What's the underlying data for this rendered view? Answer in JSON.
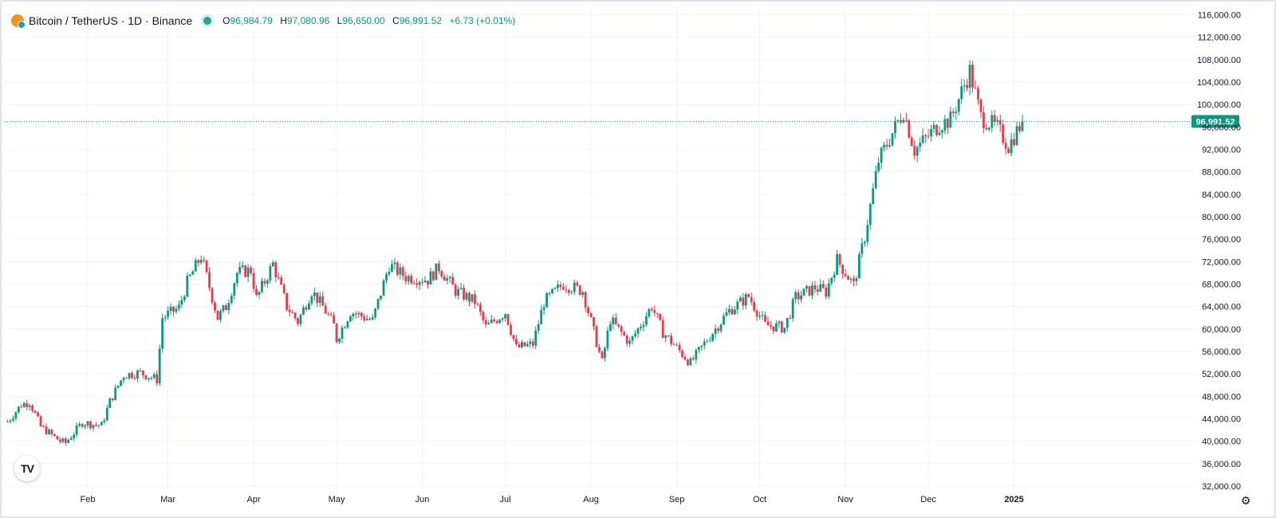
{
  "header": {
    "symbol_title": "Bitcoin / TetherUS · 1D · Binance",
    "ohlc": [
      {
        "k": "O",
        "v": "96,984.79"
      },
      {
        "k": "H",
        "v": "97,080.96"
      },
      {
        "k": "L",
        "v": "96,650.00"
      },
      {
        "k": "C",
        "v": "96,991.52"
      }
    ],
    "change": "+6.73 (+0.01%)"
  },
  "colors": {
    "up": "#089981",
    "down": "#f23645",
    "grid": "#f0f3fa",
    "axis_text": "#131722",
    "price_line": "#089981"
  },
  "logo_text": "TV",
  "settings_icon": "settings-icon",
  "chart_data": {
    "type": "candlestick",
    "xlabel": "",
    "ylabel": "",
    "ylim": [
      30000,
      117500
    ],
    "y_ticks": [
      "116,000.00",
      "112,000.00",
      "108,000.00",
      "104,000.00",
      "100,000.00",
      "96,000.00",
      "92,000.00",
      "88,000.00",
      "84,000.00",
      "80,000.00",
      "76,000.00",
      "72,000.00",
      "68,000.00",
      "64,000.00",
      "60,000.00",
      "56,000.00",
      "52,000.00",
      "48,000.00",
      "44,000.00",
      "40,000.00",
      "36,000.00",
      "32,000.00"
    ],
    "y_tick_values": [
      116000,
      112000,
      108000,
      104000,
      100000,
      96000,
      92000,
      88000,
      84000,
      80000,
      76000,
      72000,
      68000,
      64000,
      60000,
      56000,
      52000,
      48000,
      44000,
      40000,
      36000,
      32000
    ],
    "x_ticks": [
      {
        "label": "Feb",
        "date": "2024-02-01"
      },
      {
        "label": "Mar",
        "date": "2024-03-01"
      },
      {
        "label": "Apr",
        "date": "2024-04-01"
      },
      {
        "label": "May",
        "date": "2024-05-01"
      },
      {
        "label": "Jun",
        "date": "2024-06-01"
      },
      {
        "label": "Jul",
        "date": "2024-07-01"
      },
      {
        "label": "Aug",
        "date": "2024-08-01"
      },
      {
        "label": "Sep",
        "date": "2024-09-01"
      },
      {
        "label": "Oct",
        "date": "2024-10-01"
      },
      {
        "label": "Nov",
        "date": "2024-11-01"
      },
      {
        "label": "Dec",
        "date": "2024-12-01"
      },
      {
        "label": "2025",
        "date": "2025-01-01"
      }
    ],
    "x_range": [
      "2024-01-02",
      "2025-03-05"
    ],
    "last_price": 96991.52,
    "last_price_label": "96,991.52",
    "series": [
      {
        "interval": "1D",
        "first_date": "2024-01-03",
        "close_anchors": [
          [
            "2024-01-03",
            43500
          ],
          [
            "2024-01-08",
            46500
          ],
          [
            "2024-01-11",
            47000
          ],
          [
            "2024-01-15",
            42600
          ],
          [
            "2024-01-22",
            40000
          ],
          [
            "2024-01-24",
            39700
          ],
          [
            "2024-01-30",
            43300
          ],
          [
            "2024-02-06",
            42800
          ],
          [
            "2024-02-09",
            47100
          ],
          [
            "2024-02-14",
            51800
          ],
          [
            "2024-02-20",
            52200
          ],
          [
            "2024-02-26",
            51000
          ],
          [
            "2024-02-28",
            62000
          ],
          [
            "2024-03-05",
            63800
          ],
          [
            "2024-03-08",
            68300
          ],
          [
            "2024-03-13",
            73000
          ],
          [
            "2024-03-19",
            62000
          ],
          [
            "2024-03-22",
            64000
          ],
          [
            "2024-03-26",
            70000
          ],
          [
            "2024-03-31",
            70500
          ],
          [
            "2024-04-02",
            65400
          ],
          [
            "2024-04-08",
            71600
          ],
          [
            "2024-04-13",
            64000
          ],
          [
            "2024-04-17",
            61300
          ],
          [
            "2024-04-22",
            66800
          ],
          [
            "2024-04-26",
            64000
          ],
          [
            "2024-04-30",
            60600
          ],
          [
            "2024-05-01",
            58200
          ],
          [
            "2024-05-06",
            63100
          ],
          [
            "2024-05-14",
            61500
          ],
          [
            "2024-05-20",
            71400
          ],
          [
            "2024-05-26",
            69300
          ],
          [
            "2024-06-03",
            68800
          ],
          [
            "2024-06-07",
            71000
          ],
          [
            "2024-06-13",
            66800
          ],
          [
            "2024-06-20",
            64900
          ],
          [
            "2024-06-24",
            60300
          ],
          [
            "2024-07-01",
            63000
          ],
          [
            "2024-07-05",
            56600
          ],
          [
            "2024-07-11",
            57300
          ],
          [
            "2024-07-15",
            64800
          ],
          [
            "2024-07-22",
            68000
          ],
          [
            "2024-07-29",
            66800
          ],
          [
            "2024-08-05",
            54000
          ],
          [
            "2024-08-08",
            61700
          ],
          [
            "2024-08-15",
            57500
          ],
          [
            "2024-08-23",
            64100
          ],
          [
            "2024-08-27",
            59400
          ],
          [
            "2024-09-06",
            53900
          ],
          [
            "2024-09-12",
            58100
          ],
          [
            "2024-09-20",
            63300
          ],
          [
            "2024-09-27",
            65800
          ],
          [
            "2024-10-03",
            60700
          ],
          [
            "2024-10-10",
            60200
          ],
          [
            "2024-10-14",
            65600
          ],
          [
            "2024-10-21",
            67400
          ],
          [
            "2024-10-25",
            66600
          ],
          [
            "2024-10-29",
            72300
          ],
          [
            "2024-11-04",
            67800
          ],
          [
            "2024-11-08",
            76500
          ],
          [
            "2024-11-13",
            90000
          ],
          [
            "2024-11-22",
            98900
          ],
          [
            "2024-11-26",
            91900
          ],
          [
            "2024-12-05",
            96500
          ],
          [
            "2024-12-09",
            97300
          ],
          [
            "2024-12-16",
            106000
          ],
          [
            "2024-12-20",
            97800
          ],
          [
            "2024-12-26",
            95800
          ],
          [
            "2024-12-30",
            92600
          ],
          [
            "2025-01-04",
            96991.52
          ]
        ]
      }
    ],
    "grid": true
  }
}
